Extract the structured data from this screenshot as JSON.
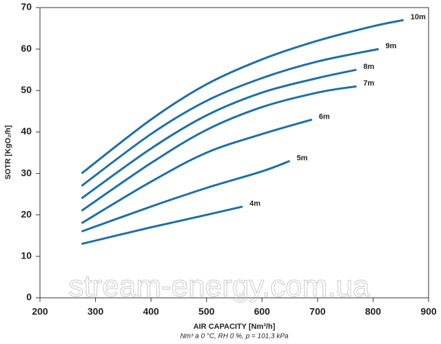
{
  "chart_data": {
    "type": "line",
    "x_label": "AIR CAPACITY [Nm³/h]",
    "y_label": "SOTR [KgO₂/h]",
    "footnote": "Nm³ a 0 °C, RH 0 %, p = 101,3 kPa",
    "watermark": "stream-energy.com.ua",
    "xlim": [
      200,
      900
    ],
    "xticks": [
      200,
      300,
      400,
      500,
      600,
      700,
      800,
      900
    ],
    "ylim": [
      0,
      70
    ],
    "yticks": [
      0,
      10,
      20,
      30,
      40,
      50,
      60,
      70
    ],
    "series": [
      {
        "name": "10m",
        "color": "#1b6fa8",
        "x": [
          275,
          400,
          500,
          600,
          700,
          800,
          855
        ],
        "values": [
          30,
          43,
          51.5,
          57.5,
          62,
          65.5,
          67
        ]
      },
      {
        "name": "9m",
        "color": "#1b6fa8",
        "x": [
          275,
          400,
          500,
          600,
          700,
          810
        ],
        "values": [
          27,
          39.5,
          47.5,
          53,
          57,
          60
        ]
      },
      {
        "name": "8m",
        "color": "#1b6fa8",
        "x": [
          275,
          400,
          500,
          600,
          700,
          770
        ],
        "values": [
          24,
          36,
          44,
          49.5,
          53,
          55
        ]
      },
      {
        "name": "7m",
        "color": "#1b6fa8",
        "x": [
          275,
          400,
          500,
          600,
          700,
          770
        ],
        "values": [
          21,
          32.5,
          40.5,
          46,
          49.5,
          51
        ]
      },
      {
        "name": "6m",
        "color": "#1b6fa8",
        "x": [
          275,
          400,
          500,
          600,
          690
        ],
        "values": [
          18,
          28,
          35,
          39.5,
          43
        ]
      },
      {
        "name": "5m",
        "color": "#1b6fa8",
        "x": [
          275,
          400,
          500,
          600,
          650
        ],
        "values": [
          16,
          22,
          26.5,
          30.5,
          33
        ]
      },
      {
        "name": "4m",
        "color": "#1b6fa8",
        "x": [
          275,
          400,
          500,
          565
        ],
        "values": [
          13,
          17,
          20,
          22
        ]
      }
    ]
  }
}
